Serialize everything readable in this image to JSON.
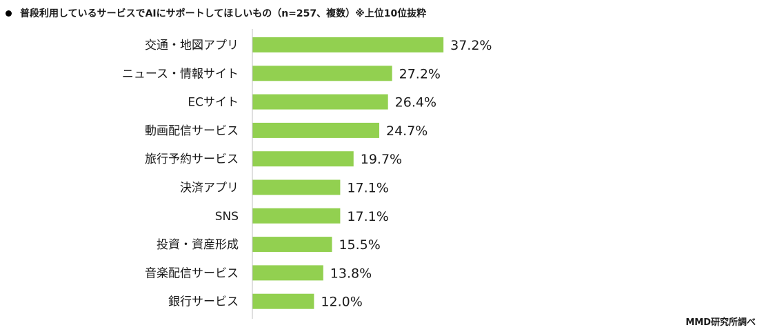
{
  "header": {
    "title": "普段利用しているサービスでAIにサポートしてほしいもの（n=257、複数）※上位10位抜粋"
  },
  "source": "MMD研究所調べ",
  "colors": {
    "bar": "#92d050",
    "axis": "#bfbfbf"
  },
  "chart_data": {
    "type": "bar",
    "orientation": "horizontal",
    "categories": [
      "交通・地図アプリ",
      "ニュース・情報サイト",
      "ECサイト",
      "動画配信サービス",
      "旅行予約サービス",
      "決済アプリ",
      "SNS",
      "投資・資産形成",
      "音楽配信サービス",
      "銀行サービス"
    ],
    "values": [
      37.2,
      27.2,
      26.4,
      24.7,
      19.7,
      17.1,
      17.1,
      15.5,
      13.8,
      12.0
    ],
    "value_labels": [
      "37.2%",
      "27.2%",
      "26.4%",
      "24.7%",
      "19.7%",
      "17.1%",
      "17.1%",
      "15.5%",
      "13.8%",
      "12.0%"
    ],
    "title": "普段利用しているサービスでAIにサポートしてほしいもの（n=257、複数）※上位10位抜粋",
    "xlabel": "",
    "ylabel": "",
    "unit": "%",
    "grid": false,
    "legend": "none"
  }
}
